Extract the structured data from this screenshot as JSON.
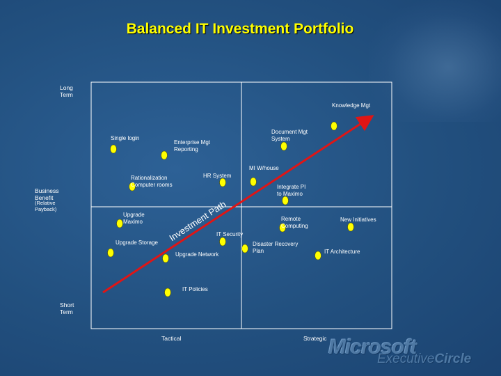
{
  "title": "Balanced IT Investment Portfolio",
  "axes": {
    "long_term": "Long\nTerm",
    "short_term": "Short\nTerm",
    "business_benefit": "Business\nBenefit",
    "business_benefit_sub": "(Relative\nPayback)",
    "tactical": "Tactical",
    "strategic": "Strategic"
  },
  "investment_path_label": "Investment Path",
  "projects": [
    {
      "name": "Knowledge Mgt"
    },
    {
      "name": "Single login"
    },
    {
      "name": "Enterprise Mgt\nReporting"
    },
    {
      "name": "Document Mgt\nSystem"
    },
    {
      "name": "MI W/house"
    },
    {
      "name": "HR System"
    },
    {
      "name": "Rationalization\nComputer rooms"
    },
    {
      "name": "Integrate PI\nto Maximo"
    },
    {
      "name": "Upgrade\nMaximo"
    },
    {
      "name": "Remote\nComputing"
    },
    {
      "name": "New Initiatives"
    },
    {
      "name": "IT Security"
    },
    {
      "name": "Upgrade Storage"
    },
    {
      "name": "Disaster Recovery\nPlan"
    },
    {
      "name": "IT Architecture"
    },
    {
      "name": "Upgrade Network"
    },
    {
      "name": "IT Policies"
    }
  ],
  "colors": {
    "title": "#ffff00",
    "bubble": "#ffff00",
    "path_arrow": "#e01515",
    "grid": "#ffffff"
  },
  "logo": {
    "brand": "Microsoft",
    "sub_light": "Executive",
    "sub_bold": "Circle"
  }
}
